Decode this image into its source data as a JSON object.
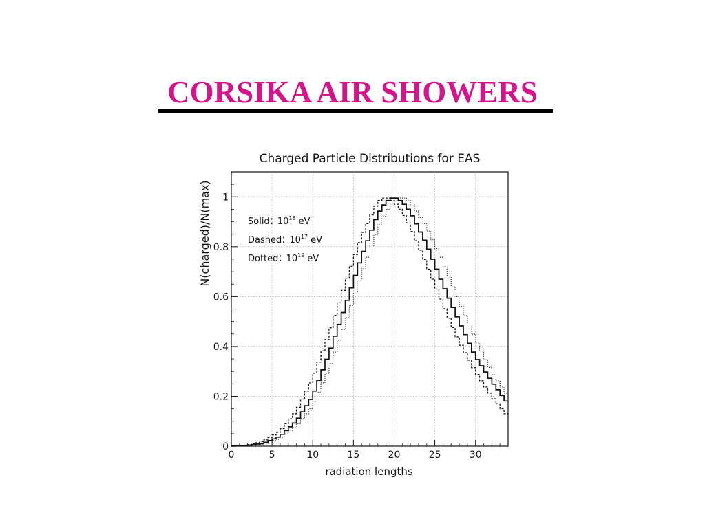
{
  "slide": {
    "title": "CORSIKA AIR SHOWERS"
  },
  "chart_data": {
    "type": "line",
    "title": "Charged Particle Distributions for EAS",
    "xlabel": "radiation lengths",
    "ylabel": "N(charged)/N(max)",
    "xlim": [
      0,
      34
    ],
    "ylim": [
      0,
      1.1
    ],
    "xticks": [
      "0",
      "5",
      "10",
      "15",
      "20",
      "25",
      "30"
    ],
    "yticks": [
      "0",
      "0.2",
      "0.4",
      "0.6",
      "0.8",
      "1"
    ],
    "grid": true,
    "legend": [
      {
        "label": "Solid",
        "energy_base": "10",
        "energy_exp": "18",
        "unit": "eV"
      },
      {
        "label": "Dashed",
        "energy_base": "10",
        "energy_exp": "17",
        "unit": "eV"
      },
      {
        "label": "Dotted",
        "energy_base": "10",
        "energy_exp": "19",
        "unit": "eV"
      }
    ],
    "legend_position": "top-left",
    "series": [
      {
        "name": "Solid",
        "style": "solid",
        "x": [
          0,
          2,
          4,
          6,
          8,
          10,
          12,
          14,
          16,
          18,
          19,
          20,
          21,
          22,
          24,
          26,
          28,
          30,
          32,
          34
        ],
        "y": [
          0,
          0.003,
          0.012,
          0.04,
          0.1,
          0.2,
          0.37,
          0.56,
          0.76,
          0.93,
          0.98,
          1.0,
          0.98,
          0.94,
          0.81,
          0.65,
          0.5,
          0.36,
          0.26,
          0.17
        ]
      },
      {
        "name": "Dashed",
        "style": "dashed",
        "x": [
          0,
          2,
          4,
          6,
          8,
          10,
          12,
          14,
          16,
          18,
          19,
          20,
          21,
          22,
          24,
          26,
          28,
          30,
          32,
          34
        ],
        "y": [
          0,
          0.004,
          0.02,
          0.06,
          0.14,
          0.27,
          0.45,
          0.65,
          0.84,
          0.98,
          1.0,
          0.98,
          0.94,
          0.88,
          0.73,
          0.57,
          0.42,
          0.3,
          0.2,
          0.12
        ]
      },
      {
        "name": "Dotted",
        "style": "dotted",
        "x": [
          0,
          2,
          4,
          6,
          8,
          10,
          12,
          14,
          16,
          18,
          19,
          20,
          21,
          22,
          24,
          26,
          28,
          30,
          32,
          34
        ],
        "y": [
          0,
          0.002,
          0.008,
          0.03,
          0.08,
          0.16,
          0.31,
          0.49,
          0.69,
          0.87,
          0.94,
          0.98,
          1.0,
          0.98,
          0.88,
          0.74,
          0.58,
          0.43,
          0.3,
          0.2
        ]
      }
    ]
  }
}
